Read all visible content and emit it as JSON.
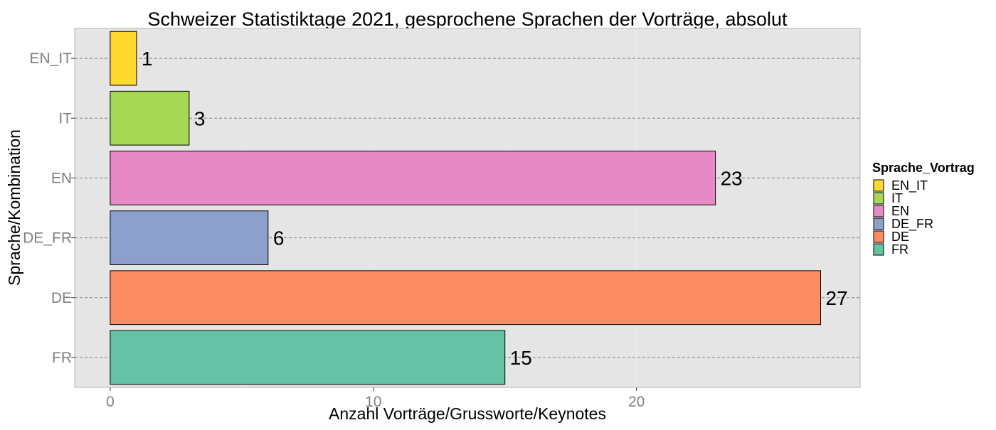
{
  "chart_data": {
    "type": "bar",
    "orientation": "horizontal",
    "title": "Schweizer Statistiktage 2021, gesprochene Sprachen der Vorträge, absolut",
    "xlabel": "Anzahl Vorträge/Grusswortе/Keynotes",
    "ylabel": "Sprache/Kombination",
    "categories": [
      "FR",
      "DE",
      "DE_FR",
      "EN",
      "IT",
      "EN_IT"
    ],
    "values": [
      15,
      27,
      6,
      23,
      3,
      1
    ],
    "colors": [
      "#66c2a5",
      "#fc8d62",
      "#8da0cb",
      "#e78ac3",
      "#a6d854",
      "#ffd92f"
    ],
    "xlim": [
      -1.35,
      28.5
    ],
    "x_ticks": [
      0,
      10,
      20
    ],
    "grid": true,
    "legend": {
      "title": "Sprache_Vortrag",
      "position": "right",
      "entries": [
        "EN_IT",
        "IT",
        "EN",
        "DE_FR",
        "DE",
        "FR"
      ]
    }
  }
}
